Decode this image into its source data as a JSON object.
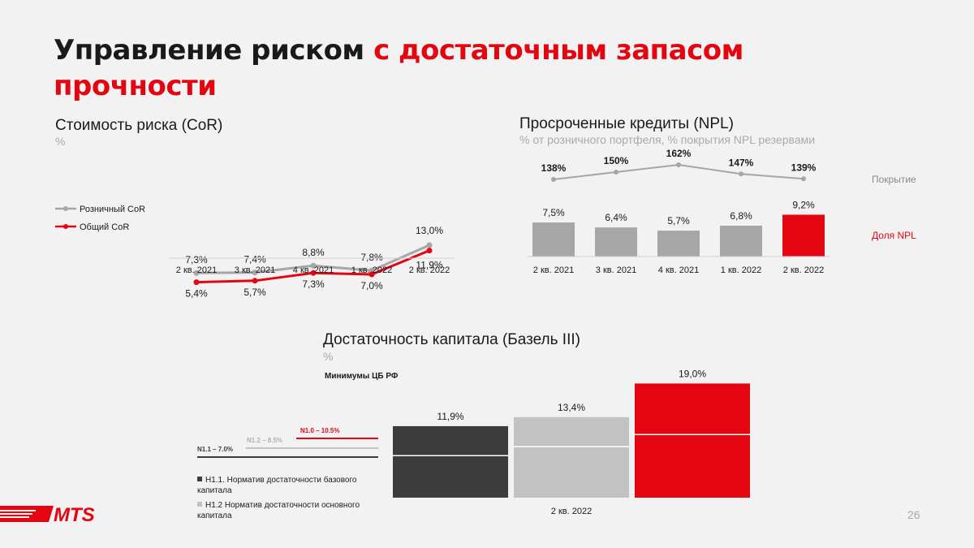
{
  "title": {
    "part1": "Управление риском ",
    "part2": "с достаточным запасом",
    "part3": "прочности"
  },
  "cor": {
    "title": "Стоимость риска (CoR)",
    "subtitle": "%",
    "legend_retail": "Розничный CoR",
    "legend_total": "Общий CoR"
  },
  "npl": {
    "title": "Просроченные кредиты (NPL)",
    "subtitle": "% от розничного портфеля, % покрытия NPL резервами",
    "label_coverage": "Покрытие",
    "label_share": "Доля NPL"
  },
  "capital": {
    "title": "Достаточность капитала (Базель III)",
    "subtitle": "%",
    "minimums_title": "Минимумы ЦБ РФ",
    "min_n11": "N1.1 – 7.0%",
    "min_n12": "N1.2 – 8.5%",
    "min_n10": "N1.0 – 10.5%",
    "legend_n11": "Н1.1. Норматив достаточности базового капитала",
    "legend_n12": "Н1.2 Норматив достаточности основного капитала"
  },
  "page_number": "26",
  "logo_text": "MTS",
  "colors": {
    "red": "#e30611",
    "gray": "#a6a6a6",
    "dark": "#3c3c3c",
    "light": "#c2c2c2"
  },
  "chart_data": [
    {
      "type": "line",
      "title": "Стоимость риска (CoR)",
      "categories": [
        "2 кв. 2021",
        "3 кв. 2021",
        "4 кв. 2021",
        "1 кв. 2022",
        "2 кв. 2022"
      ],
      "series": [
        {
          "name": "Розничный CoR",
          "values": [
            7.3,
            7.4,
            8.8,
            7.8,
            13.0
          ],
          "labels": [
            "7,3%",
            "7,4%",
            "8,8%",
            "7,8%",
            "13,0%"
          ]
        },
        {
          "name": "Общий CoR",
          "values": [
            5.4,
            5.7,
            7.3,
            7.0,
            11.9
          ],
          "labels": [
            "5,4%",
            "5,7%",
            "7,3%",
            "7,0%",
            "11,9%"
          ]
        }
      ]
    },
    {
      "type": "bar",
      "title": "Просроченные кредиты (NPL)",
      "categories": [
        "2 кв. 2021",
        "3 кв. 2021",
        "4 кв. 2021",
        "1 кв. 2022",
        "2 кв. 2022"
      ],
      "series": [
        {
          "name": "Покрытие",
          "type": "line",
          "values": [
            138,
            150,
            162,
            147,
            139
          ],
          "labels": [
            "138%",
            "150%",
            "162%",
            "147%",
            "139%"
          ]
        },
        {
          "name": "Доля NPL",
          "type": "bar",
          "values": [
            7.5,
            6.4,
            5.7,
            6.8,
            9.2
          ],
          "labels": [
            "7,5%",
            "6,4%",
            "5,7%",
            "6,8%",
            "9,2%"
          ]
        }
      ]
    },
    {
      "type": "bar",
      "title": "Достаточность капитала (Базель III)",
      "categories": [
        "2 кв. 2022"
      ],
      "bars": [
        {
          "value": 11.9,
          "label": "11,9%",
          "minimum": 7.0
        },
        {
          "value": 13.4,
          "label": "13,4%",
          "minimum": 8.5
        },
        {
          "value": 19.0,
          "label": "19,0%",
          "minimum": 10.5
        }
      ]
    }
  ]
}
